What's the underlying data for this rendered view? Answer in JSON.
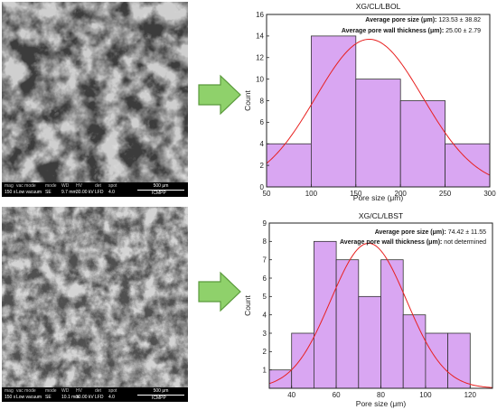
{
  "sem_panels": [
    {
      "databar": {
        "headers": [
          "mag",
          "vac mode",
          "mode",
          "WD",
          "HV",
          "det",
          "spot"
        ],
        "values": [
          "150 x",
          "Low vacuum",
          "SE",
          "9.7 mm",
          "30.00 kV",
          "LFD",
          "4.0"
        ],
        "scale": "500 μm",
        "lab": "ICMPP"
      }
    },
    {
      "databar": {
        "headers": [
          "mag",
          "vac mode",
          "mode",
          "WD",
          "HV",
          "det",
          "spot"
        ],
        "values": [
          "150 x",
          "Low vacuum",
          "SE",
          "10.1 mm",
          "30.00 kV",
          "LFD",
          "4.0"
        ],
        "scale": "500 μm",
        "lab": "ICMPP"
      }
    }
  ],
  "colors": {
    "bar_fill": "#d9a6f2",
    "bar_stroke": "#333333",
    "fit_curve": "#e8201f",
    "arrow_fill": "#8fd16b",
    "arrow_stroke": "#5a9a3c"
  },
  "chart_data": [
    {
      "type": "bar",
      "title": "XG/CL/LBOL",
      "annotations": [
        {
          "label": "Average pore size (μm):",
          "value": "123.53 ± 38.82"
        },
        {
          "label": "Average pore wall thickness (μm):",
          "value": "25.00 ± 2.79"
        }
      ],
      "xlabel": "Pore size (μm)",
      "ylabel": "Count",
      "bins": [
        [
          50,
          100
        ],
        [
          100,
          150
        ],
        [
          150,
          200
        ],
        [
          200,
          250
        ],
        [
          250,
          300
        ]
      ],
      "values": [
        4,
        14,
        10,
        8,
        4
      ],
      "xlim": [
        50,
        300
      ],
      "ylim": [
        0,
        16
      ],
      "xticks": [
        50,
        100,
        150,
        200,
        250,
        300
      ],
      "yticks": [
        0,
        2,
        4,
        6,
        8,
        10,
        12,
        14,
        16
      ],
      "fit": {
        "mean": 165,
        "sd": 60,
        "peak": 13.7
      }
    },
    {
      "type": "bar",
      "title": "XG/CL/LBST",
      "annotations": [
        {
          "label": "Average pore size (μm):",
          "value": "74.42 ± 11.55"
        },
        {
          "label": "Average pore wall thickness (μm):",
          "value": "not determined"
        }
      ],
      "xlabel": "Pore size (μm)",
      "ylabel": "Count",
      "bins": [
        [
          30,
          40
        ],
        [
          40,
          50
        ],
        [
          50,
          60
        ],
        [
          60,
          70
        ],
        [
          70,
          80
        ],
        [
          80,
          90
        ],
        [
          90,
          100
        ],
        [
          100,
          110
        ],
        [
          110,
          120
        ]
      ],
      "values": [
        1,
        3,
        8,
        7,
        5,
        7,
        4,
        3,
        3
      ],
      "xlim": [
        30,
        130
      ],
      "ylim": [
        0,
        9
      ],
      "xticks": [
        40,
        60,
        80,
        100,
        120
      ],
      "yticks": [
        1,
        2,
        3,
        4,
        5,
        6,
        7,
        8,
        9
      ],
      "fit": {
        "mean": 74.5,
        "sd": 17,
        "peak": 7.9
      }
    }
  ]
}
